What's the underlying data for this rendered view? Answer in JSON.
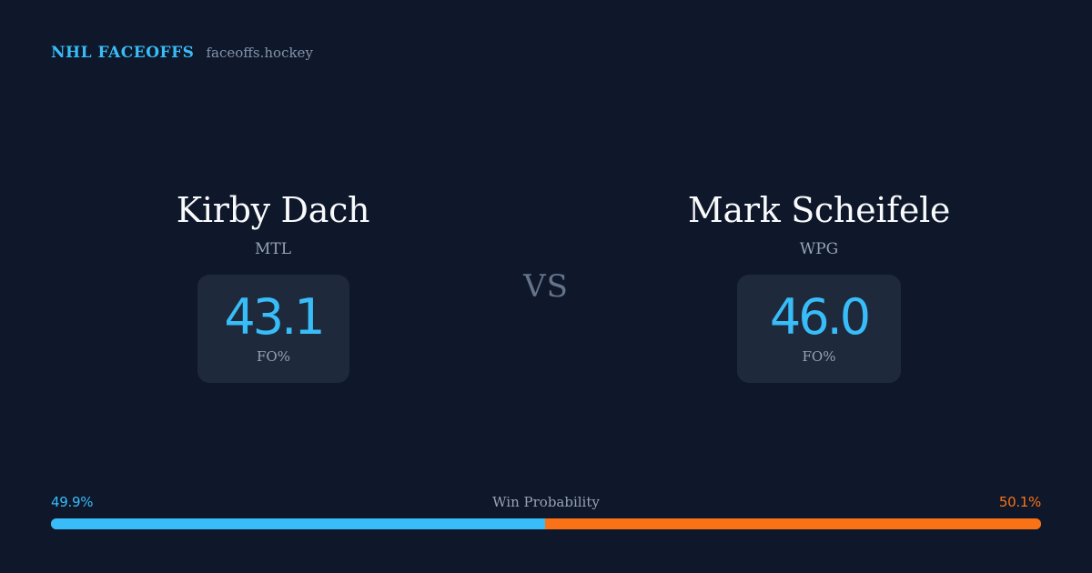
{
  "brand": {
    "name": "NHL FACEOFFS",
    "site": "faceoffs.hockey"
  },
  "colors": {
    "background": "#0f172a",
    "card": "#1e293b",
    "accent_blue": "#38bdf8",
    "accent_orange": "#f97316"
  },
  "matchup": {
    "vs_label": "VS",
    "left_player": {
      "name": "Kirby Dach",
      "team": "MTL",
      "stat_value": "43.1",
      "stat_label": "FO%"
    },
    "right_player": {
      "name": "Mark Scheifele",
      "team": "WPG",
      "stat_value": "46.0",
      "stat_label": "FO%"
    }
  },
  "win_probability": {
    "title": "Win Probability",
    "left_label": "49.9%",
    "right_label": "50.1%",
    "left_value": 49.9,
    "right_value": 50.1
  }
}
